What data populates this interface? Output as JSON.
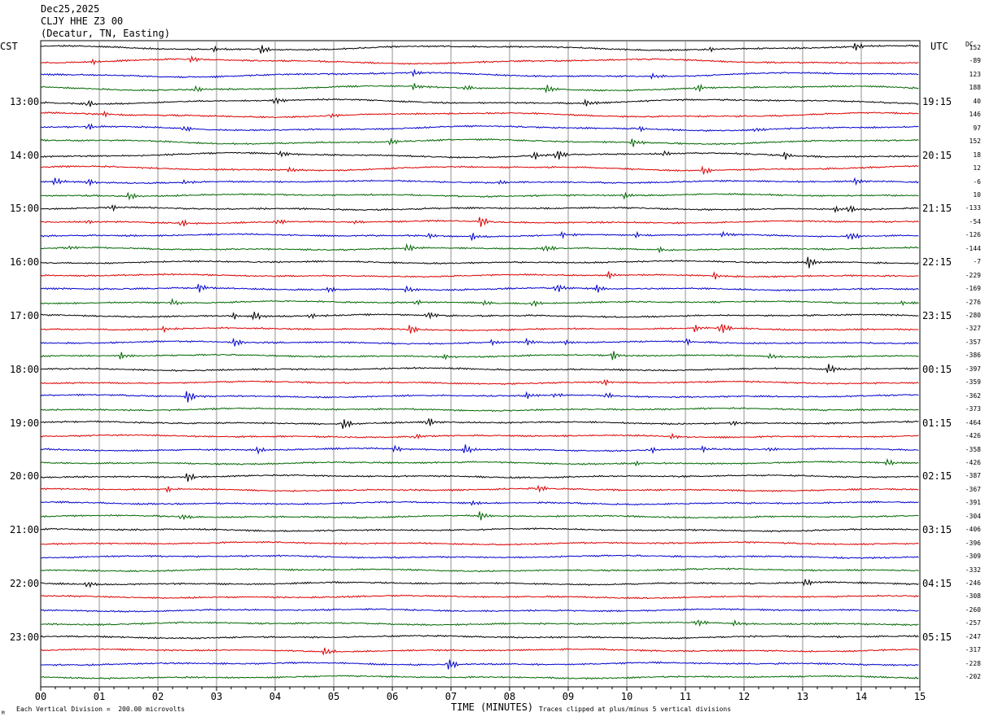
{
  "header": {
    "date": "Dec25,2025",
    "station": "CLJY HHE Z3 00",
    "location": "(Decatur, TN, Easting)"
  },
  "left_timezone": "CST",
  "right_timezone": "UTC",
  "dc_label": "DC",
  "footer": {
    "scale_note": "Each Vertical Division =  200.00 microvolts",
    "clip_note": "Traces clipped at plus/minus 5 vertical divisions",
    "small_mark": "M"
  },
  "chart_data": {
    "type": "line",
    "title": "",
    "xlabel": "TIME (MINUTES)",
    "ylabel": "",
    "x_ticks": [
      "00",
      "01",
      "02",
      "03",
      "04",
      "05",
      "06",
      "07",
      "08",
      "09",
      "10",
      "11",
      "12",
      "13",
      "14",
      "15"
    ],
    "xlim": [
      0,
      15
    ],
    "grid": true,
    "trace_colors": [
      "#000000",
      "#dd0000",
      "#0000cc",
      "#006600"
    ],
    "left_time_labels": [
      "13:00",
      "14:00",
      "15:00",
      "16:00",
      "17:00",
      "18:00",
      "19:00",
      "20:00",
      "21:00",
      "22:00",
      "23:00"
    ],
    "right_time_labels": [
      "19:15",
      "20:15",
      "21:15",
      "22:15",
      "23:15",
      "00:15",
      "01:15",
      "02:15",
      "03:15",
      "04:15",
      "05:15"
    ],
    "dc_offsets": [
      "152",
      "-89",
      "123",
      "188",
      "40",
      "146",
      "97",
      "152",
      "18",
      "12",
      "-6",
      "10",
      "-133",
      "-54",
      "-126",
      "-144",
      "-7",
      "-229",
      "-169",
      "-276",
      "-280",
      "-327",
      "-357",
      "-386",
      "-397",
      "-359",
      "-362",
      "-373",
      "-464",
      "-426",
      "-358",
      "-426",
      "-387",
      "-367",
      "-391",
      "-304",
      "-406",
      "-396",
      "-309",
      "-332",
      "-246",
      "-308",
      "-260",
      "-257",
      "-247",
      "-317",
      "-228",
      "-202"
    ],
    "events": [
      {
        "trace": 0,
        "minute": 2.95,
        "amp": 4
      },
      {
        "trace": 0,
        "minute": 3.75,
        "amp": 7
      },
      {
        "trace": 0,
        "minute": 11.4,
        "amp": 3
      },
      {
        "trace": 0,
        "minute": 13.9,
        "amp": 6
      },
      {
        "trace": 1,
        "minute": 0.9,
        "amp": 3
      },
      {
        "trace": 1,
        "minute": 2.55,
        "amp": 5
      },
      {
        "trace": 2,
        "minute": 6.35,
        "amp": 5
      },
      {
        "trace": 2,
        "minute": 10.45,
        "amp": 4
      },
      {
        "trace": 3,
        "minute": 2.65,
        "amp": 5
      },
      {
        "trace": 3,
        "minute": 6.35,
        "amp": 5
      },
      {
        "trace": 3,
        "minute": 7.25,
        "amp": 4
      },
      {
        "trace": 3,
        "minute": 8.65,
        "amp": 6
      },
      {
        "trace": 3,
        "minute": 11.2,
        "amp": 6
      },
      {
        "trace": 4,
        "minute": 0.8,
        "amp": 5
      },
      {
        "trace": 4,
        "minute": 4.0,
        "amp": 6
      },
      {
        "trace": 4,
        "minute": 9.3,
        "amp": 5
      },
      {
        "trace": 5,
        "minute": 1.1,
        "amp": 3
      },
      {
        "trace": 5,
        "minute": 4.95,
        "amp": 3
      },
      {
        "trace": 6,
        "minute": 0.8,
        "amp": 6
      },
      {
        "trace": 6,
        "minute": 2.45,
        "amp": 4
      },
      {
        "trace": 6,
        "minute": 10.2,
        "amp": 4
      },
      {
        "trace": 6,
        "minute": 12.2,
        "amp": 4
      },
      {
        "trace": 7,
        "minute": 5.95,
        "amp": 5
      },
      {
        "trace": 7,
        "minute": 10.1,
        "amp": 6
      },
      {
        "trace": 8,
        "minute": 4.1,
        "amp": 4
      },
      {
        "trace": 8,
        "minute": 8.4,
        "amp": 6
      },
      {
        "trace": 8,
        "minute": 8.8,
        "amp": 9
      },
      {
        "trace": 8,
        "minute": 10.65,
        "amp": 4
      },
      {
        "trace": 8,
        "minute": 12.7,
        "amp": 5
      },
      {
        "trace": 9,
        "minute": 4.25,
        "amp": 4
      },
      {
        "trace": 9,
        "minute": 11.3,
        "amp": 6
      },
      {
        "trace": 10,
        "minute": 0.25,
        "amp": 6
      },
      {
        "trace": 10,
        "minute": 0.8,
        "amp": 5
      },
      {
        "trace": 10,
        "minute": 2.45,
        "amp": 3
      },
      {
        "trace": 10,
        "minute": 7.85,
        "amp": 3
      },
      {
        "trace": 10,
        "minute": 13.9,
        "amp": 5
      },
      {
        "trace": 11,
        "minute": 1.5,
        "amp": 5
      },
      {
        "trace": 11,
        "minute": 9.95,
        "amp": 5
      },
      {
        "trace": 12,
        "minute": 1.2,
        "amp": 5
      },
      {
        "trace": 12,
        "minute": 13.55,
        "amp": 4
      },
      {
        "trace": 12,
        "minute": 13.8,
        "amp": 6
      },
      {
        "trace": 13,
        "minute": 0.8,
        "amp": 4
      },
      {
        "trace": 13,
        "minute": 2.4,
        "amp": 6
      },
      {
        "trace": 13,
        "minute": 4.05,
        "amp": 4
      },
      {
        "trace": 13,
        "minute": 5.35,
        "amp": 3
      },
      {
        "trace": 13,
        "minute": 7.5,
        "amp": 8
      },
      {
        "trace": 14,
        "minute": 6.6,
        "amp": 4
      },
      {
        "trace": 14,
        "minute": 7.35,
        "amp": 6
      },
      {
        "trace": 14,
        "minute": 8.9,
        "amp": 4
      },
      {
        "trace": 14,
        "minute": 10.15,
        "amp": 4
      },
      {
        "trace": 14,
        "minute": 11.65,
        "amp": 4
      },
      {
        "trace": 14,
        "minute": 13.8,
        "amp": 7
      },
      {
        "trace": 15,
        "minute": 0.5,
        "amp": 3
      },
      {
        "trace": 15,
        "minute": 6.25,
        "amp": 6
      },
      {
        "trace": 15,
        "minute": 8.6,
        "amp": 6
      },
      {
        "trace": 15,
        "minute": 10.55,
        "amp": 3
      },
      {
        "trace": 16,
        "minute": 13.1,
        "amp": 8
      },
      {
        "trace": 17,
        "minute": 9.7,
        "amp": 5
      },
      {
        "trace": 17,
        "minute": 11.5,
        "amp": 5
      },
      {
        "trace": 18,
        "minute": 2.7,
        "amp": 6
      },
      {
        "trace": 18,
        "minute": 4.9,
        "amp": 4
      },
      {
        "trace": 18,
        "minute": 6.25,
        "amp": 5
      },
      {
        "trace": 18,
        "minute": 8.8,
        "amp": 7
      },
      {
        "trace": 18,
        "minute": 9.5,
        "amp": 5
      },
      {
        "trace": 19,
        "minute": 2.25,
        "amp": 5
      },
      {
        "trace": 19,
        "minute": 6.4,
        "amp": 4
      },
      {
        "trace": 19,
        "minute": 7.55,
        "amp": 4
      },
      {
        "trace": 19,
        "minute": 8.4,
        "amp": 5
      },
      {
        "trace": 19,
        "minute": 14.7,
        "amp": 3
      },
      {
        "trace": 20,
        "minute": 3.3,
        "amp": 4
      },
      {
        "trace": 20,
        "minute": 3.65,
        "amp": 7
      },
      {
        "trace": 20,
        "minute": 4.6,
        "amp": 4
      },
      {
        "trace": 20,
        "minute": 6.6,
        "amp": 6
      },
      {
        "trace": 21,
        "minute": 2.1,
        "amp": 4
      },
      {
        "trace": 21,
        "minute": 6.3,
        "amp": 7
      },
      {
        "trace": 21,
        "minute": 11.15,
        "amp": 5
      },
      {
        "trace": 21,
        "minute": 11.6,
        "amp": 9
      },
      {
        "trace": 22,
        "minute": 3.3,
        "amp": 6
      },
      {
        "trace": 22,
        "minute": 7.7,
        "amp": 4
      },
      {
        "trace": 22,
        "minute": 8.3,
        "amp": 5
      },
      {
        "trace": 22,
        "minute": 8.95,
        "amp": 4
      },
      {
        "trace": 22,
        "minute": 11.0,
        "amp": 5
      },
      {
        "trace": 23,
        "minute": 1.35,
        "amp": 5
      },
      {
        "trace": 23,
        "minute": 6.9,
        "amp": 3
      },
      {
        "trace": 23,
        "minute": 9.75,
        "amp": 7
      },
      {
        "trace": 23,
        "minute": 12.45,
        "amp": 4
      },
      {
        "trace": 24,
        "minute": 13.45,
        "amp": 8
      },
      {
        "trace": 25,
        "minute": 9.6,
        "amp": 5
      },
      {
        "trace": 26,
        "minute": 2.5,
        "amp": 9
      },
      {
        "trace": 26,
        "minute": 8.3,
        "amp": 4
      },
      {
        "trace": 26,
        "minute": 8.75,
        "amp": 3
      },
      {
        "trace": 26,
        "minute": 9.65,
        "amp": 4
      },
      {
        "trace": 28,
        "minute": 5.15,
        "amp": 8
      },
      {
        "trace": 28,
        "minute": 6.6,
        "amp": 7
      },
      {
        "trace": 28,
        "minute": 11.8,
        "amp": 4
      },
      {
        "trace": 29,
        "minute": 6.4,
        "amp": 4
      },
      {
        "trace": 29,
        "minute": 10.75,
        "amp": 4
      },
      {
        "trace": 30,
        "minute": 3.7,
        "amp": 5
      },
      {
        "trace": 30,
        "minute": 6.05,
        "amp": 5
      },
      {
        "trace": 30,
        "minute": 7.25,
        "amp": 8
      },
      {
        "trace": 30,
        "minute": 10.4,
        "amp": 4
      },
      {
        "trace": 30,
        "minute": 11.3,
        "amp": 4
      },
      {
        "trace": 30,
        "minute": 12.4,
        "amp": 3
      },
      {
        "trace": 31,
        "minute": 10.15,
        "amp": 3
      },
      {
        "trace": 31,
        "minute": 14.45,
        "amp": 5
      },
      {
        "trace": 32,
        "minute": 2.5,
        "amp": 7
      },
      {
        "trace": 33,
        "minute": 2.15,
        "amp": 4
      },
      {
        "trace": 33,
        "minute": 8.5,
        "amp": 5
      },
      {
        "trace": 34,
        "minute": 7.35,
        "amp": 4
      },
      {
        "trace": 35,
        "minute": 2.4,
        "amp": 5
      },
      {
        "trace": 35,
        "minute": 7.5,
        "amp": 6
      },
      {
        "trace": 40,
        "minute": 0.8,
        "amp": 5
      },
      {
        "trace": 40,
        "minute": 13.05,
        "amp": 6
      },
      {
        "trace": 43,
        "minute": 11.2,
        "amp": 6
      },
      {
        "trace": 43,
        "minute": 11.85,
        "amp": 4
      },
      {
        "trace": 45,
        "minute": 4.85,
        "amp": 6
      },
      {
        "trace": 46,
        "minute": 6.95,
        "amp": 9
      }
    ]
  }
}
